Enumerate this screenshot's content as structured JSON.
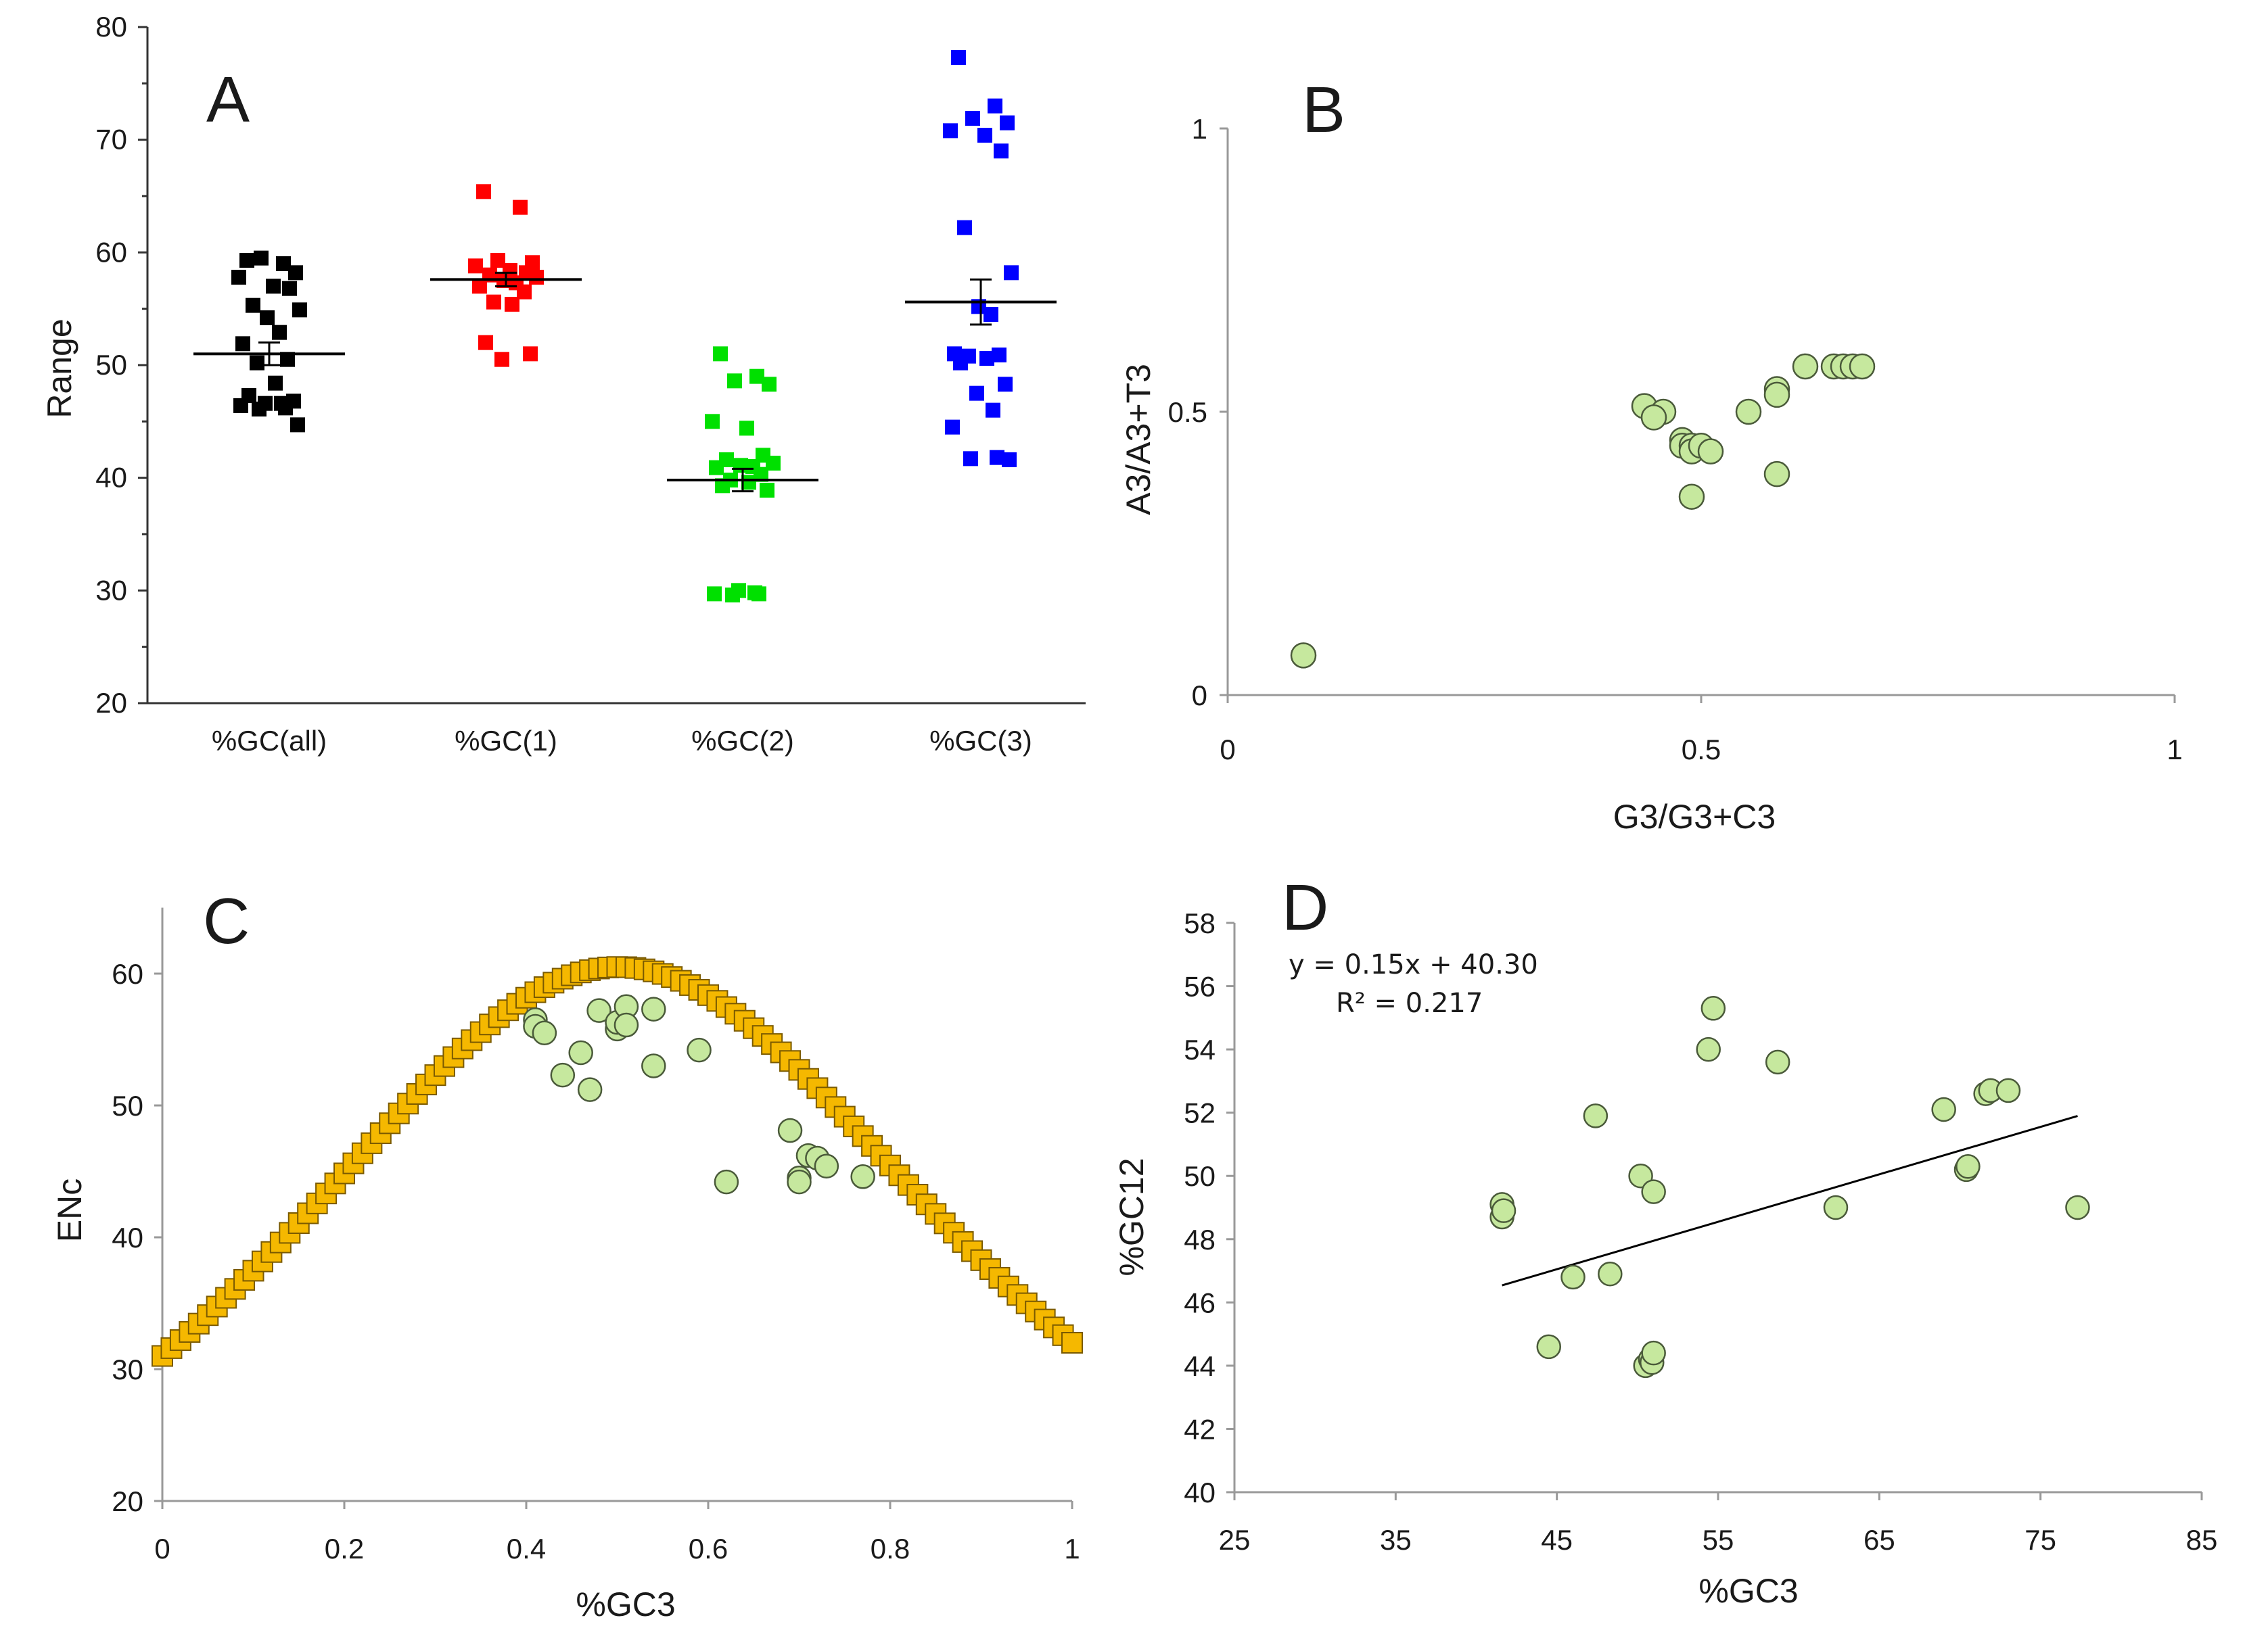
{
  "chart_data": [
    {
      "panel": "A",
      "type": "scatter",
      "title": "A",
      "xlabel": "",
      "ylabel": "Range",
      "ylim": [
        20,
        80
      ],
      "yticks": [
        20,
        30,
        40,
        50,
        60,
        70,
        80
      ],
      "categories": [
        "%GC(all)",
        "%GC(1)",
        "%GC(2)",
        "%GC(3)"
      ],
      "series": [
        {
          "name": "%GC(all)",
          "color": "#000000",
          "mean": 51.0,
          "sem": 1.0,
          "values": [
            59.3,
            59.0,
            59.5,
            58.2,
            57.8,
            57.0,
            56.8,
            55.3,
            54.9,
            54.2,
            52.9,
            51.9,
            50.5,
            50.2,
            48.4,
            47.3,
            46.8,
            46.6,
            46.6,
            46.4,
            46.2,
            46.1,
            44.7
          ]
        },
        {
          "name": "%GC(1)",
          "color": "#ff0000",
          "mean": 57.6,
          "sem": 0.6,
          "values": [
            65.4,
            64.0,
            59.3,
            59.1,
            58.8,
            58.4,
            58.2,
            58.0,
            57.8,
            57.5,
            57.3,
            57.0,
            56.5,
            55.6,
            55.4,
            52.0,
            51.0,
            50.5
          ]
        },
        {
          "name": "%GC(2)",
          "color": "#00e000",
          "mean": 39.8,
          "sem": 1.0,
          "values": [
            51.0,
            49.0,
            48.6,
            48.3,
            45.0,
            44.4,
            42.0,
            41.6,
            41.3,
            41.1,
            41.0,
            40.9,
            40.3,
            39.8,
            39.6,
            39.3,
            38.9,
            30.0,
            29.8,
            29.7,
            29.7,
            29.6
          ]
        },
        {
          "name": "%GC(3)",
          "color": "#0000ff",
          "mean": 55.6,
          "sem": 2.0,
          "values": [
            77.3,
            73.0,
            71.9,
            71.5,
            70.8,
            70.4,
            69.0,
            62.2,
            58.2,
            55.2,
            54.5,
            51.0,
            50.9,
            50.8,
            50.6,
            50.2,
            48.3,
            47.5,
            46.0,
            44.5,
            41.8,
            41.7,
            41.6
          ]
        }
      ]
    },
    {
      "panel": "B",
      "type": "scatter",
      "title": "B",
      "xlabel": "G3/G3+C3",
      "ylabel": "A3/A3+T3",
      "xlim": [
        0,
        1
      ],
      "ylim": [
        0,
        1
      ],
      "xticks": [
        0,
        0.5,
        1
      ],
      "yticks": [
        0,
        0.5,
        1
      ],
      "x": [
        0.08,
        0.44,
        0.46,
        0.45,
        0.48,
        0.48,
        0.49,
        0.49,
        0.5,
        0.51,
        0.49,
        0.55,
        0.58,
        0.58,
        0.58,
        0.61,
        0.64,
        0.65,
        0.66,
        0.67
      ],
      "y": [
        0.07,
        0.51,
        0.5,
        0.49,
        0.45,
        0.44,
        0.44,
        0.43,
        0.44,
        0.43,
        0.35,
        0.5,
        0.54,
        0.53,
        0.39,
        0.58,
        0.58,
        0.58,
        0.58,
        0.58
      ]
    },
    {
      "panel": "C",
      "type": "scatter",
      "title": "C",
      "xlabel": "%GC3",
      "ylabel": "ENc",
      "xlim": [
        0,
        1
      ],
      "ylim": [
        20,
        65
      ],
      "xticks": [
        0,
        0.2,
        0.4,
        0.6,
        0.8,
        1
      ],
      "yticks": [
        20,
        30,
        40,
        50,
        60
      ],
      "expected_curve": "ENc = 2 + s + 29 / (s^2 + (1 - s)^2), s = %GC3",
      "x": [
        0.41,
        0.41,
        0.42,
        0.44,
        0.46,
        0.47,
        0.48,
        0.5,
        0.5,
        0.51,
        0.51,
        0.54,
        0.54,
        0.59,
        0.62,
        0.69,
        0.7,
        0.7,
        0.71,
        0.72,
        0.73,
        0.77
      ],
      "y": [
        56.5,
        56.0,
        55.5,
        52.3,
        54.0,
        51.2,
        57.2,
        55.8,
        56.3,
        57.5,
        56.1,
        57.3,
        53.0,
        54.2,
        44.2,
        48.1,
        44.5,
        44.2,
        46.2,
        46.0,
        45.4,
        44.6
      ]
    },
    {
      "panel": "D",
      "type": "scatter",
      "title": "D",
      "xlabel": "%GC3",
      "ylabel": "%GC12",
      "xlim": [
        25,
        85
      ],
      "ylim": [
        40,
        58
      ],
      "xticks": [
        25,
        35,
        45,
        55,
        65,
        75,
        85
      ],
      "yticks": [
        40,
        42,
        44,
        46,
        48,
        50,
        52,
        54,
        56,
        58
      ],
      "equation": "y = 0.15x + 40.30",
      "r2_label": "R² = 0.217",
      "trend": {
        "slope": 0.15,
        "intercept": 40.3,
        "x_from": 41.6,
        "x_to": 77.3
      },
      "x": [
        41.6,
        41.6,
        41.7,
        44.5,
        46.0,
        47.4,
        48.3,
        50.2,
        50.5,
        50.8,
        50.9,
        51.0,
        51.0,
        54.4,
        54.7,
        58.7,
        62.3,
        69.0,
        70.4,
        70.5,
        71.6,
        71.9,
        73.0,
        77.3
      ],
      "y": [
        48.7,
        49.1,
        48.9,
        44.6,
        46.8,
        51.9,
        46.9,
        50.0,
        44.0,
        44.2,
        44.1,
        49.5,
        44.4,
        54.0,
        55.3,
        53.6,
        49.0,
        52.1,
        50.2,
        50.3,
        52.6,
        52.7,
        52.7,
        49.0
      ]
    }
  ]
}
